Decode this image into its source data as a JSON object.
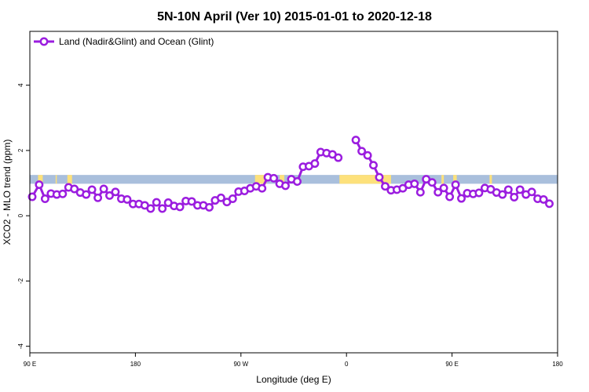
{
  "chart_data": {
    "type": "line",
    "title": "5N-10N April (Ver 10)   2015-01-01 to 2020-12-18",
    "xlabel": "Longitude (deg E)",
    "ylabel": "XCO2 - MLO trend (ppm)",
    "x_ticks": [
      {
        "value": 90,
        "label": "90 E"
      },
      {
        "value": 180,
        "label": "180"
      },
      {
        "value": 270,
        "label": "90 W"
      },
      {
        "value": 360,
        "label": "0"
      },
      {
        "value": 450,
        "label": "90 E"
      },
      {
        "value": 540,
        "label": "180"
      }
    ],
    "y_ticks": [
      {
        "value": -4,
        "label": "-4"
      },
      {
        "value": -2,
        "label": "-2"
      },
      {
        "value": 0,
        "label": "0"
      },
      {
        "value": 2,
        "label": "2"
      },
      {
        "value": 4,
        "label": "4"
      }
    ],
    "xlim": [
      90,
      540
    ],
    "ylim": [
      -4.2,
      5.65
    ],
    "legend": {
      "position": "top-left"
    },
    "band": {
      "y_min": 0.98,
      "y_max": 1.25,
      "ocean_color": "#a9bfdc",
      "land_color": "#fde17b"
    },
    "series": [
      {
        "name": "Land (Nadir&Glint) and Ocean (Glint)",
        "color": "#9b1ddf",
        "segments": [
          [
            [
              92,
              0.58
            ],
            [
              98,
              0.95
            ],
            [
              103,
              0.52
            ],
            [
              108,
              0.68
            ],
            [
              113,
              0.65
            ],
            [
              118,
              0.67
            ],
            [
              123,
              0.87
            ],
            [
              128,
              0.82
            ],
            [
              133,
              0.71
            ],
            [
              138,
              0.65
            ],
            [
              143,
              0.8
            ],
            [
              148,
              0.55
            ],
            [
              153,
              0.82
            ],
            [
              158,
              0.62
            ],
            [
              163,
              0.73
            ],
            [
              168,
              0.52
            ],
            [
              173,
              0.5
            ],
            [
              178,
              0.36
            ],
            [
              183,
              0.36
            ],
            [
              188,
              0.32
            ],
            [
              193,
              0.22
            ],
            [
              198,
              0.41
            ],
            [
              203,
              0.22
            ],
            [
              208,
              0.4
            ],
            [
              213,
              0.3
            ],
            [
              218,
              0.27
            ],
            [
              223,
              0.45
            ],
            [
              228,
              0.44
            ],
            [
              233,
              0.32
            ],
            [
              238,
              0.32
            ],
            [
              243,
              0.26
            ],
            [
              248,
              0.47
            ],
            [
              253,
              0.55
            ],
            [
              258,
              0.42
            ],
            [
              263,
              0.52
            ],
            [
              268,
              0.74
            ],
            [
              273,
              0.76
            ],
            [
              278,
              0.84
            ],
            [
              283,
              0.9
            ],
            [
              288,
              0.84
            ],
            [
              293,
              1.18
            ],
            [
              298,
              1.15
            ],
            [
              303,
              0.98
            ],
            [
              308,
              0.92
            ],
            [
              313,
              1.12
            ],
            [
              318,
              1.05
            ],
            [
              323,
              1.5
            ],
            [
              328,
              1.52
            ],
            [
              333,
              1.6
            ],
            [
              338,
              1.95
            ],
            [
              343,
              1.92
            ],
            [
              348,
              1.88
            ],
            [
              353,
              1.78
            ]
          ],
          [
            [
              368,
              2.32
            ],
            [
              373,
              1.98
            ],
            [
              378,
              1.85
            ],
            [
              383,
              1.55
            ],
            [
              388,
              1.18
            ],
            [
              393,
              0.9
            ],
            [
              398,
              0.78
            ],
            [
              403,
              0.8
            ],
            [
              408,
              0.84
            ],
            [
              413,
              0.95
            ],
            [
              418,
              0.98
            ],
            [
              423,
              0.72
            ],
            [
              428,
              1.12
            ],
            [
              433,
              1.02
            ],
            [
              438,
              0.72
            ],
            [
              443,
              0.85
            ],
            [
              448,
              0.58
            ],
            [
              453,
              0.95
            ],
            [
              458,
              0.53
            ],
            [
              463,
              0.69
            ],
            [
              468,
              0.67
            ],
            [
              473,
              0.7
            ],
            [
              478,
              0.85
            ],
            [
              483,
              0.81
            ],
            [
              488,
              0.71
            ],
            [
              493,
              0.65
            ],
            [
              498,
              0.8
            ],
            [
              503,
              0.57
            ],
            [
              508,
              0.8
            ],
            [
              513,
              0.65
            ],
            [
              518,
              0.73
            ],
            [
              523,
              0.52
            ],
            [
              528,
              0.5
            ],
            [
              533,
              0.37
            ]
          ]
        ]
      }
    ]
  }
}
